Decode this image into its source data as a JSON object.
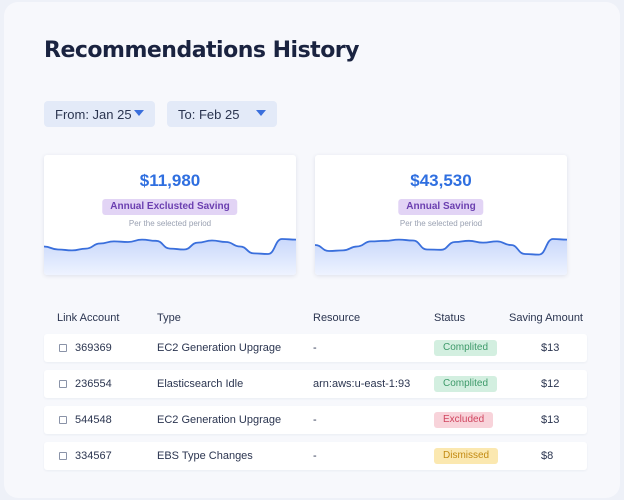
{
  "page": {
    "title": "Recommendations History"
  },
  "filters": {
    "from_label": "From: Jan 25",
    "to_label": "To: Feb 25"
  },
  "cards": [
    {
      "amount": "$11,980",
      "label": "Annual Exclusted Saving",
      "sub": "Per the selected period",
      "sparkline": [
        0.55,
        0.45,
        0.42,
        0.48,
        0.65,
        0.72,
        0.7,
        0.78,
        0.74,
        0.48,
        0.45,
        0.68,
        0.75,
        0.7,
        0.55,
        0.32,
        0.3,
        0.8,
        0.78
      ]
    },
    {
      "amount": "$43,530",
      "label": "Annual Saving",
      "sub": "Per the selected period",
      "sparkline": [
        0.6,
        0.4,
        0.42,
        0.55,
        0.72,
        0.74,
        0.78,
        0.75,
        0.45,
        0.44,
        0.7,
        0.74,
        0.68,
        0.72,
        0.6,
        0.3,
        0.28,
        0.8,
        0.78
      ]
    }
  ],
  "table": {
    "headers": [
      "Link Account",
      "Type",
      "Resource",
      "Status",
      "Saving Amount"
    ],
    "rows": [
      {
        "account": "369369",
        "type": "EC2 Generation Upgrage",
        "resource": "-",
        "status": "Complited",
        "status_kind": "complited",
        "amount": "$13"
      },
      {
        "account": "236554",
        "type": "Elasticsearch Idle",
        "resource": "arn:aws:u-east-1:93",
        "status": "Complited",
        "status_kind": "complited",
        "amount": "$12"
      },
      {
        "account": "544548",
        "type": "EC2 Generation Upgrage",
        "resource": "-",
        "status": "Excluded",
        "status_kind": "excluded",
        "amount": "$13"
      },
      {
        "account": "334567",
        "type": "EBS Type Changes",
        "resource": "-",
        "status": "Dismissed",
        "status_kind": "dismissed",
        "amount": "$8"
      }
    ]
  },
  "colors": {
    "accent": "#2f6fe0",
    "line": "#3a6fdc",
    "area_top": "#c9d8fb",
    "area_bottom": "#eef3ff"
  }
}
